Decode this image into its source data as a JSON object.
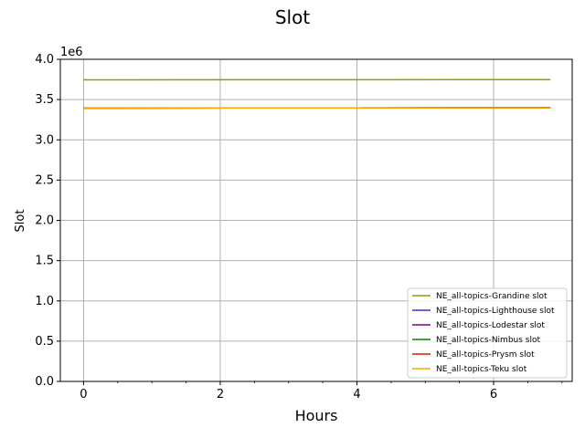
{
  "chart_data": {
    "type": "line",
    "title": "Slot",
    "xlabel": "Hours",
    "ylabel": "Slot",
    "y_offset_label": "1e6",
    "xlim": [
      -0.34,
      7.15
    ],
    "ylim": [
      0,
      4000000
    ],
    "xticks": [
      0,
      2,
      4,
      6
    ],
    "xtick_labels": [
      "0",
      "2",
      "4",
      "6"
    ],
    "yticks": [
      0,
      500000,
      1000000,
      1500000,
      2000000,
      2500000,
      3000000,
      3500000,
      4000000
    ],
    "ytick_labels": [
      "0.0",
      "0.5",
      "1.0",
      "1.5",
      "2.0",
      "2.5",
      "3.0",
      "3.5",
      "4.0"
    ],
    "grid": true,
    "legend_position": "lower-right",
    "series": [
      {
        "name": "NE_all-topics-Grandine slot",
        "color": "#999900",
        "x": [
          0,
          6.83
        ],
        "y": [
          3745000,
          3748000
        ]
      },
      {
        "name": "NE_all-topics-Lighthouse slot",
        "color": "#3333cc",
        "x": [
          0,
          6.83
        ],
        "y": [
          3395000,
          3398000
        ]
      },
      {
        "name": "NE_all-topics-Lodestar slot",
        "color": "#800080",
        "x": [
          0,
          6.83
        ],
        "y": [
          3395000,
          3398000
        ]
      },
      {
        "name": "NE_all-topics-Nimbus slot",
        "color": "#008000",
        "x": [
          0,
          6.83
        ],
        "y": [
          3395000,
          3398000
        ]
      },
      {
        "name": "NE_all-topics-Prysm slot",
        "color": "#cc2200",
        "x": [
          0,
          6.83
        ],
        "y": [
          3395000,
          3398000
        ]
      },
      {
        "name": "NE_all-topics-Teku slot",
        "color": "#ffa500",
        "x": [
          0,
          6.83
        ],
        "y": [
          3395000,
          3398000
        ]
      }
    ]
  }
}
